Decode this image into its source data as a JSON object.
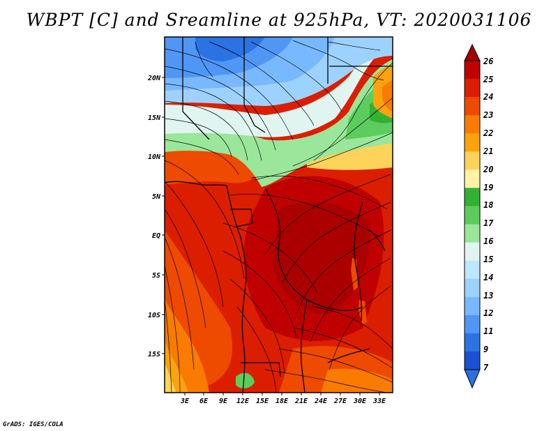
{
  "title": "WBPT [C] and Sreamline at 925hPa, VT: 2020031106",
  "credit": "GrADS: IGES/COLA",
  "map": {
    "lat_labels": [
      "20N",
      "15N",
      "10N",
      "5N",
      "EQ",
      "5S",
      "10S",
      "15S"
    ],
    "lon_labels": [
      "3E",
      "6E",
      "9E",
      "12E",
      "15E",
      "18E",
      "21E",
      "24E",
      "27E",
      "30E",
      "33E"
    ]
  },
  "colorbar": {
    "levels": [
      "26",
      "25",
      "24",
      "23",
      "22",
      "21",
      "20",
      "19",
      "18",
      "17",
      "16",
      "15",
      "14",
      "13",
      "12",
      "11",
      "9",
      "7"
    ],
    "colors": [
      "#a50000",
      "#c00000",
      "#dc1e00",
      "#ee4a00",
      "#f97b00",
      "#fba30c",
      "#fdd35a",
      "#fff2a6",
      "#33b133",
      "#5ccc5c",
      "#9ae69a",
      "#e0f5f0",
      "#bde6ff",
      "#9dd2ff",
      "#78b8ff",
      "#5096f5",
      "#2b72e3",
      "#1a50d2"
    ],
    "top_arrow_color": "#a50000",
    "bottom_arrow_color": "#2a70e0"
  }
}
